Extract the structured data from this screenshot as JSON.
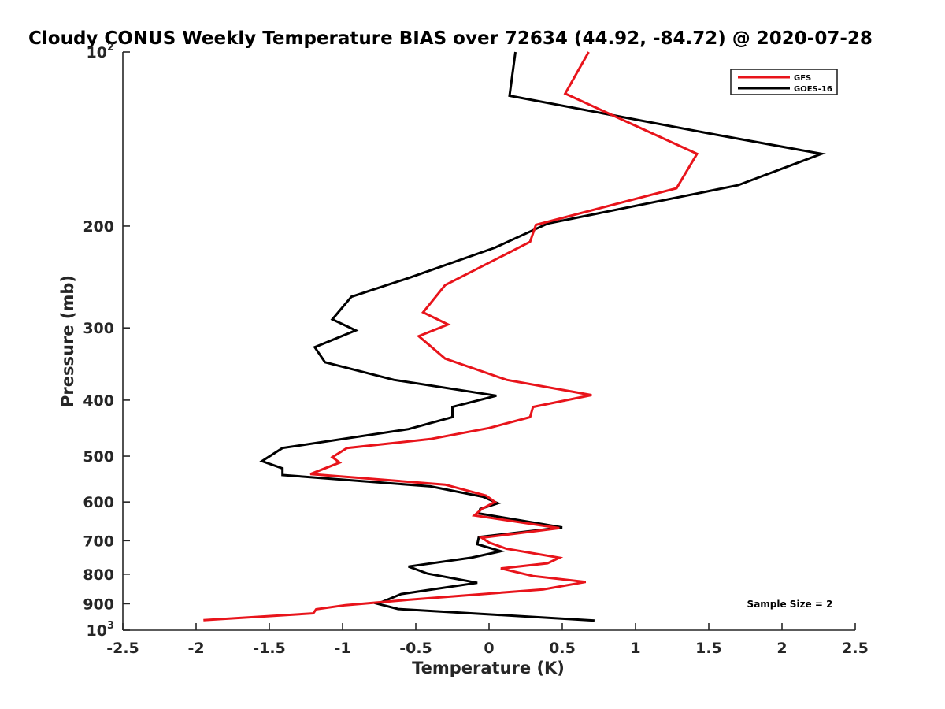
{
  "chart_data": {
    "type": "line",
    "title": "Cloudy CONUS Weekly Temperature BIAS over 72634 (44.92, -84.72) @ 2020-07-28",
    "xlabel": "Temperature (K)",
    "ylabel": "Pressure (mb)",
    "xlim": [
      -2.5,
      2.5
    ],
    "ylim": [
      1000,
      100
    ],
    "yscale": "log",
    "y_reversed": true,
    "grid": false,
    "legend_position": "top-right",
    "x_ticks": [
      "-2.5",
      "-2",
      "-1.5",
      "-1",
      "-0.5",
      "0",
      "0.5",
      "1",
      "1.5",
      "2",
      "2.5"
    ],
    "x_tick_values": [
      -2.5,
      -2,
      -1.5,
      -1,
      -0.5,
      0,
      0.5,
      1,
      1.5,
      2,
      2.5
    ],
    "y_tick_labels": [
      {
        "base": "10",
        "exp": "2",
        "value": 100
      },
      {
        "base": "200",
        "exp": "",
        "value": 200
      },
      {
        "base": "300",
        "exp": "",
        "value": 300
      },
      {
        "base": "400",
        "exp": "",
        "value": 400
      },
      {
        "base": "500",
        "exp": "",
        "value": 500
      },
      {
        "base": "600",
        "exp": "",
        "value": 600
      },
      {
        "base": "700",
        "exp": "",
        "value": 700
      },
      {
        "base": "800",
        "exp": "",
        "value": 800
      },
      {
        "base": "900",
        "exp": "",
        "value": 900
      },
      {
        "base": "10",
        "exp": "3",
        "value": 1000
      }
    ],
    "series": [
      {
        "name": "GFS",
        "color": "#e8141b",
        "points": [
          [
            0.68,
            100
          ],
          [
            0.52,
            118
          ],
          [
            1.42,
            150
          ],
          [
            1.28,
            172
          ],
          [
            0.32,
            199
          ],
          [
            0.28,
            213
          ],
          [
            -0.3,
            253
          ],
          [
            -0.45,
            282
          ],
          [
            -0.28,
            296
          ],
          [
            -0.48,
            310
          ],
          [
            -0.3,
            339
          ],
          [
            0.12,
            369
          ],
          [
            0.7,
            392
          ],
          [
            0.3,
            411
          ],
          [
            0.28,
            428
          ],
          [
            0.0,
            447
          ],
          [
            -0.4,
            467
          ],
          [
            -0.97,
            484
          ],
          [
            -1.07,
            502
          ],
          [
            -1.02,
            513
          ],
          [
            -1.22,
            537
          ],
          [
            -0.3,
            560
          ],
          [
            -0.02,
            585
          ],
          [
            0.04,
            600
          ],
          [
            -0.05,
            617
          ],
          [
            -0.1,
            633
          ],
          [
            0.48,
            666
          ],
          [
            -0.05,
            692
          ],
          [
            0.0,
            705
          ],
          [
            0.12,
            723
          ],
          [
            0.48,
            749
          ],
          [
            0.4,
            766
          ],
          [
            0.08,
            782
          ],
          [
            0.3,
            806
          ],
          [
            0.66,
            825
          ],
          [
            0.37,
            850
          ],
          [
            -0.55,
            886
          ],
          [
            -0.98,
            905
          ],
          [
            -1.18,
            920
          ],
          [
            -1.2,
            935
          ],
          [
            -1.95,
            961
          ]
        ]
      },
      {
        "name": "GOES-16",
        "color": "#000000",
        "points": [
          [
            0.18,
            100
          ],
          [
            0.14,
            119
          ],
          [
            1.55,
            139
          ],
          [
            2.27,
            150
          ],
          [
            1.7,
            170
          ],
          [
            0.4,
            198
          ],
          [
            0.04,
            218
          ],
          [
            -0.55,
            246
          ],
          [
            -0.94,
            265
          ],
          [
            -1.07,
            290
          ],
          [
            -0.91,
            303
          ],
          [
            -1.19,
            324
          ],
          [
            -1.12,
            344
          ],
          [
            -0.65,
            369
          ],
          [
            0.05,
            393
          ],
          [
            -0.25,
            411
          ],
          [
            -0.25,
            428
          ],
          [
            -0.55,
            449
          ],
          [
            -1.41,
            484
          ],
          [
            -1.55,
            510
          ],
          [
            -1.41,
            525
          ],
          [
            -1.41,
            539
          ],
          [
            -0.4,
            564
          ],
          [
            -0.04,
            588
          ],
          [
            0.06,
            603
          ],
          [
            -0.06,
            617
          ],
          [
            -0.07,
            628
          ],
          [
            0.5,
            664
          ],
          [
            -0.07,
            690
          ],
          [
            -0.08,
            710
          ],
          [
            0.08,
            730
          ],
          [
            -0.12,
            749
          ],
          [
            -0.55,
            776
          ],
          [
            -0.42,
            798
          ],
          [
            -0.08,
            828
          ],
          [
            -0.6,
            866
          ],
          [
            -0.76,
            900
          ],
          [
            -0.62,
            919
          ],
          [
            0.72,
            962
          ]
        ]
      }
    ],
    "annotation": "Sample Size = 2"
  }
}
